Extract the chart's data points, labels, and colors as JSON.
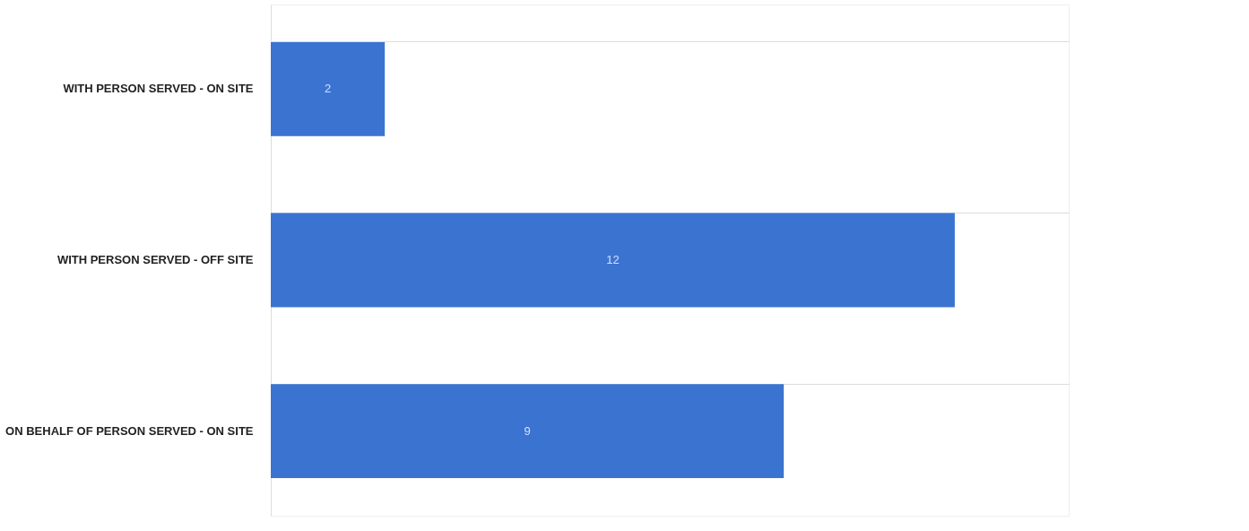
{
  "chart_data": {
    "type": "bar",
    "orientation": "horizontal",
    "categories": [
      "WITH PERSON SERVED - ON SITE",
      "WITH PERSON SERVED - OFF SITE",
      "ON BEHALF OF PERSON SERVED - ON SITE"
    ],
    "values": [
      2,
      12,
      9
    ],
    "color": "#3b73d1",
    "xlim": [
      0,
      14
    ],
    "data_labels": true,
    "grid": "y",
    "tick_labels": "y"
  }
}
